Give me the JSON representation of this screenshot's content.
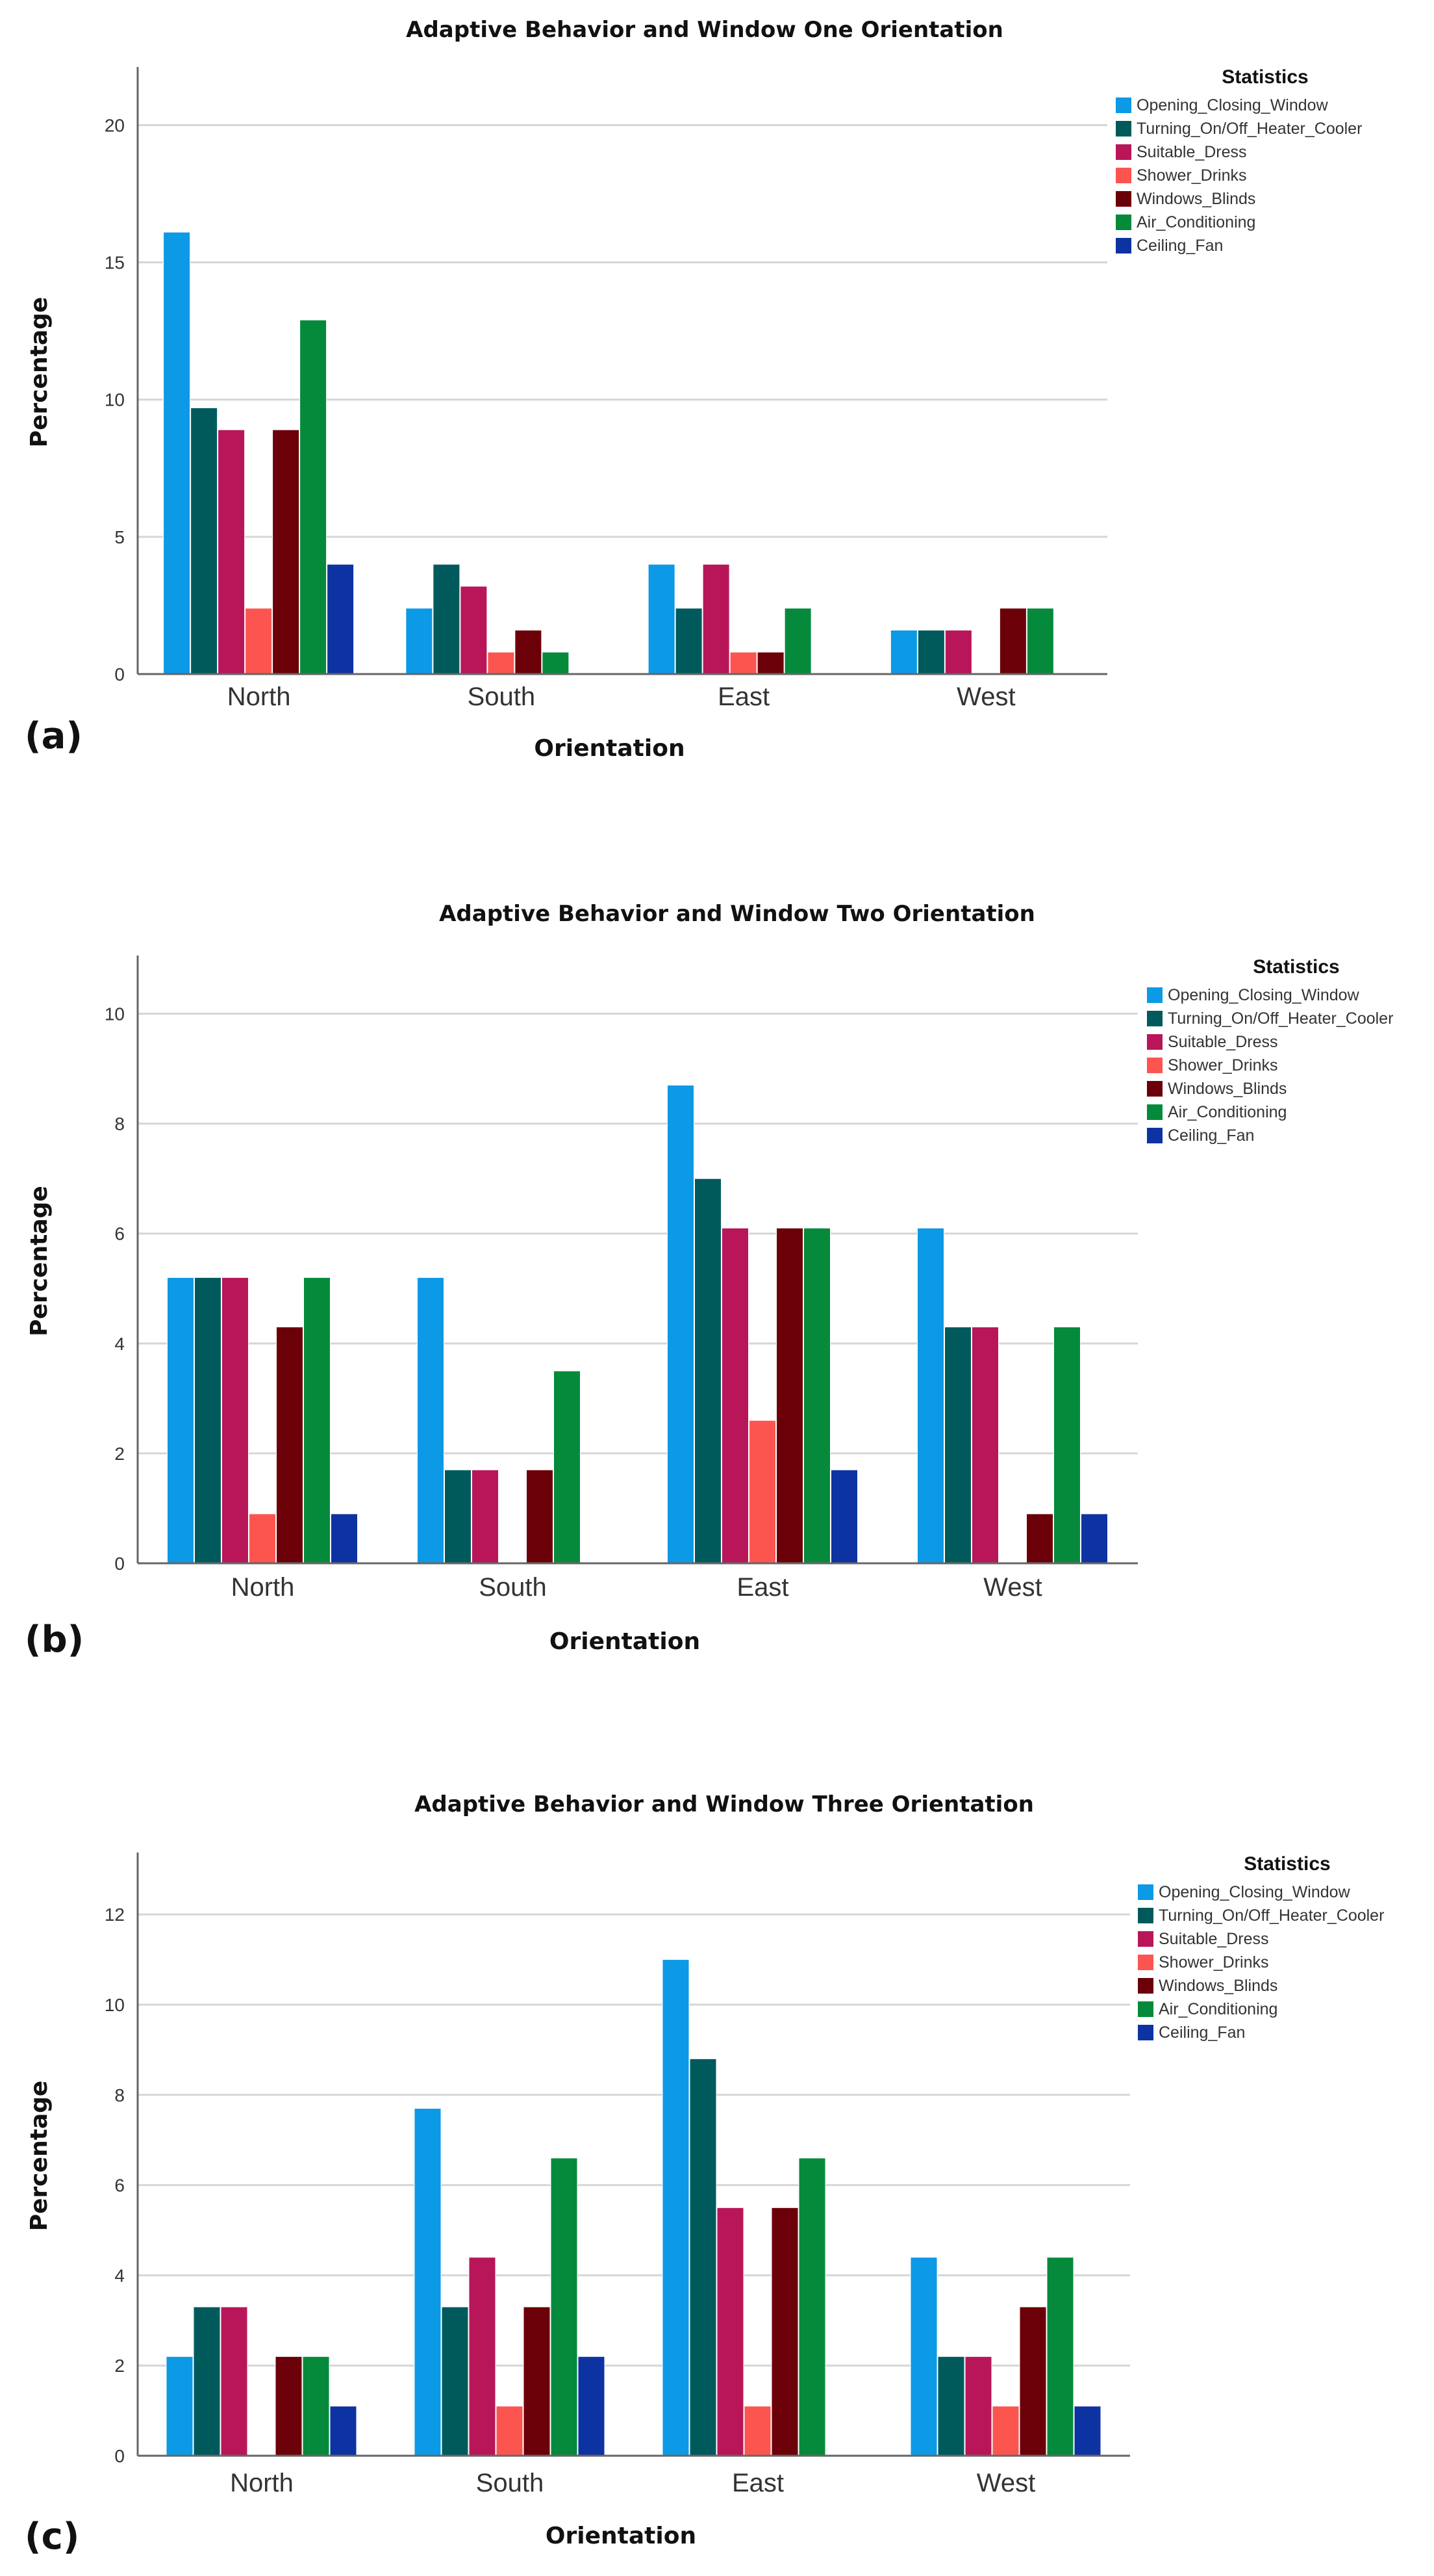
{
  "figure_labels": [
    "(a)",
    "(b)",
    "(c)"
  ],
  "chart_data": [
    {
      "type": "bar",
      "title": "Adaptive Behavior and Window One Orientation",
      "xlabel": "Orientation",
      "ylabel": "Percentage",
      "ylim": [
        0,
        22
      ],
      "yticks": [
        0,
        5,
        10,
        15,
        20
      ],
      "grid": true,
      "legend_title": "Statistics",
      "legend_position": "top-right",
      "categories": [
        "North",
        "South",
        "East",
        "West"
      ],
      "series": [
        {
          "name": "Opening_Closing_Window",
          "color": "#0c99e6",
          "values": [
            16.1,
            2.4,
            4.0,
            1.6
          ]
        },
        {
          "name": "Turning_On/Off_Heater_Cooler",
          "color": "#005a5c",
          "values": [
            9.7,
            4.0,
            2.4,
            1.6
          ]
        },
        {
          "name": "Suitable_Dress",
          "color": "#b81659",
          "values": [
            8.9,
            3.2,
            4.0,
            1.6
          ]
        },
        {
          "name": "Shower_Drinks",
          "color": "#fc5550",
          "values": [
            2.4,
            0.8,
            0.8,
            0
          ]
        },
        {
          "name": "Windows_Blinds",
          "color": "#6b0008",
          "values": [
            8.9,
            1.6,
            0.8,
            2.4
          ]
        },
        {
          "name": "Air_Conditioning",
          "color": "#058a3b",
          "values": [
            12.9,
            0.8,
            2.4,
            2.4
          ]
        },
        {
          "name": "Ceiling_Fan",
          "color": "#0d33a3",
          "values": [
            4.0,
            0,
            0,
            0
          ]
        }
      ]
    },
    {
      "type": "bar",
      "title": "Adaptive Behavior and Window Two Orientation",
      "xlabel": "Orientation",
      "ylabel": "Percentage",
      "ylim": [
        0,
        11
      ],
      "yticks": [
        0,
        2,
        4,
        6,
        8,
        10
      ],
      "grid": true,
      "legend_title": "Statistics",
      "legend_position": "top-right",
      "categories": [
        "North",
        "South",
        "East",
        "West"
      ],
      "series": [
        {
          "name": "Opening_Closing_Window",
          "color": "#0c99e6",
          "values": [
            5.2,
            5.2,
            8.7,
            6.1
          ]
        },
        {
          "name": "Turning_On/Off_Heater_Cooler",
          "color": "#005a5c",
          "values": [
            5.2,
            1.7,
            7.0,
            4.3
          ]
        },
        {
          "name": "Suitable_Dress",
          "color": "#b81659",
          "values": [
            5.2,
            1.7,
            6.1,
            4.3
          ]
        },
        {
          "name": "Shower_Drinks",
          "color": "#fc5550",
          "values": [
            0.9,
            0,
            2.6,
            0
          ]
        },
        {
          "name": "Windows_Blinds",
          "color": "#6b0008",
          "values": [
            4.3,
            1.7,
            6.1,
            0.9
          ]
        },
        {
          "name": "Air_Conditioning",
          "color": "#058a3b",
          "values": [
            5.2,
            3.5,
            6.1,
            4.3
          ]
        },
        {
          "name": "Ceiling_Fan",
          "color": "#0d33a3",
          "values": [
            0.9,
            0,
            1.7,
            0.9
          ]
        }
      ]
    },
    {
      "type": "bar",
      "title": "Adaptive Behavior and Window Three Orientation",
      "xlabel": "Orientation",
      "ylabel": "Percentage",
      "ylim": [
        0,
        13.3
      ],
      "yticks": [
        0,
        2,
        4,
        6,
        8,
        10,
        12
      ],
      "grid": true,
      "legend_title": "Statistics",
      "legend_position": "top-right",
      "categories": [
        "North",
        "South",
        "East",
        "West"
      ],
      "series": [
        {
          "name": "Opening_Closing_Window",
          "color": "#0c99e6",
          "values": [
            2.2,
            7.7,
            11.0,
            4.4
          ]
        },
        {
          "name": "Turning_On/Off_Heater_Cooler",
          "color": "#005a5c",
          "values": [
            3.3,
            3.3,
            8.8,
            2.2
          ]
        },
        {
          "name": "Suitable_Dress",
          "color": "#b81659",
          "values": [
            3.3,
            4.4,
            5.5,
            2.2
          ]
        },
        {
          "name": "Shower_Drinks",
          "color": "#fc5550",
          "values": [
            0,
            1.1,
            1.1,
            1.1
          ]
        },
        {
          "name": "Windows_Blinds",
          "color": "#6b0008",
          "values": [
            2.2,
            3.3,
            5.5,
            3.3
          ]
        },
        {
          "name": "Air_Conditioning",
          "color": "#058a3b",
          "values": [
            2.2,
            6.6,
            6.6,
            4.4
          ]
        },
        {
          "name": "Ceiling_Fan",
          "color": "#0d33a3",
          "values": [
            1.1,
            2.2,
            0,
            1.1
          ]
        }
      ]
    }
  ]
}
